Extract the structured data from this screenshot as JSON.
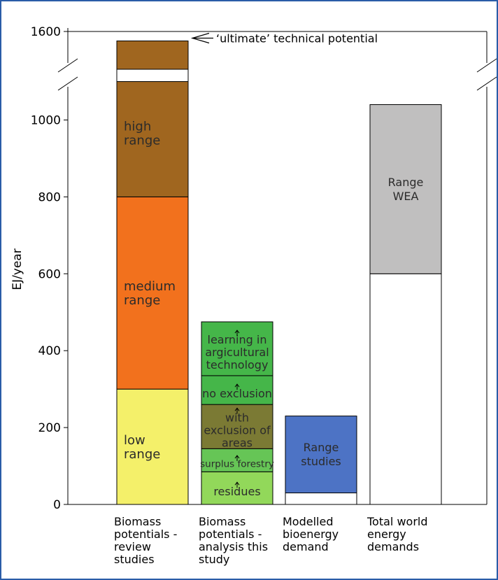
{
  "chart_data": {
    "type": "bar",
    "stacked": true,
    "ylabel": "EJ/year",
    "y_ticks": [
      0,
      200,
      400,
      600,
      800,
      1000,
      1600
    ],
    "y_axis_break": [
      1100,
      1500
    ],
    "categories": [
      [
        "Biomass",
        "potentials -",
        "review",
        "studies"
      ],
      [
        "Biomass",
        "potentials -",
        "analysis this",
        "study"
      ],
      [
        "Modelled",
        "bioenergy",
        "demand"
      ],
      [
        "Total world",
        "energy",
        "demands"
      ]
    ],
    "bars": [
      {
        "segments": [
          {
            "from": 0,
            "to": 300,
            "color": "#f4f06a",
            "label": [
              "low",
              "range"
            ]
          },
          {
            "from": 300,
            "to": 800,
            "color": "#f2711d",
            "label": [
              "medium",
              "range"
            ]
          },
          {
            "from": 800,
            "to": 1500,
            "color": "#a0661f",
            "label": [
              "high",
              "range"
            ]
          }
        ]
      },
      {
        "segments": [
          {
            "from": 0,
            "to": 85,
            "color": "#92d85a",
            "label": [
              "residues"
            ]
          },
          {
            "from": 85,
            "to": 145,
            "color": "#66c556",
            "label": [
              "surplus forestry"
            ]
          },
          {
            "from": 145,
            "to": 260,
            "color": "#7b7a34",
            "label": [
              "with",
              "exclusion of",
              "areas"
            ]
          },
          {
            "from": 260,
            "to": 335,
            "color": "#45b649",
            "label": [
              "no exclusion"
            ]
          },
          {
            "from": 335,
            "to": 475,
            "color": "#45b649",
            "label": [
              "learning in",
              "argicultural",
              "technology"
            ]
          }
        ]
      },
      {
        "segments": [
          {
            "from": 0,
            "to": 30,
            "color": "#ffffff",
            "label": []
          },
          {
            "from": 30,
            "to": 230,
            "color": "#4d73c5",
            "label": [
              "Range",
              "studies"
            ]
          }
        ]
      },
      {
        "segments": [
          {
            "from": 0,
            "to": 600,
            "color": "#ffffff",
            "label": []
          },
          {
            "from": 600,
            "to": 1040,
            "color": "#c0bfbf",
            "label": [
              "Range",
              "WEA"
            ]
          }
        ]
      }
    ],
    "top_cap": {
      "bar": 0,
      "from": 1500,
      "to": 1575,
      "color": "#a0661f"
    },
    "annotation": "‘ultimate’ technical potential"
  }
}
